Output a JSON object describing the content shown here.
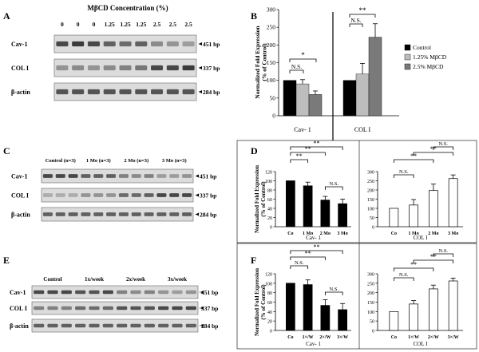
{
  "panels": {
    "A": {
      "letter": "A",
      "header": "MβCD Concentration (%)",
      "lanes": [
        "0",
        "0",
        "0",
        "1.25",
        "1.25",
        "1.25",
        "2.5",
        "2.5",
        "2.5"
      ],
      "rows": [
        {
          "name": "Cav-1",
          "size": "451 bp",
          "levels": [
            0.85,
            0.9,
            0.85,
            0.75,
            0.7,
            0.75,
            0.55,
            0.5,
            0.45
          ]
        },
        {
          "name": "COL I",
          "size": "337 bp",
          "levels": [
            0.5,
            0.55,
            0.5,
            0.55,
            0.6,
            0.65,
            0.85,
            0.85,
            0.9
          ]
        },
        {
          "name": "β-actin",
          "size": "284 bp",
          "levels": [
            0.8,
            0.8,
            0.8,
            0.8,
            0.8,
            0.8,
            0.8,
            0.8,
            0.8
          ]
        }
      ]
    },
    "C": {
      "letter": "C",
      "groups": [
        "Control (n=3)",
        "1 Mo (n=3)",
        "2 Mo (n=3)",
        "3 Mo (n=3)"
      ],
      "rows": [
        {
          "name": "Cav-1",
          "size": "451 bp",
          "levels": [
            0.85,
            0.85,
            0.85,
            0.75,
            0.75,
            0.75,
            0.6,
            0.55,
            0.6,
            0.45,
            0.45,
            0.5
          ]
        },
        {
          "name": "COL I",
          "size": "337 bp",
          "levels": [
            0.35,
            0.35,
            0.35,
            0.5,
            0.5,
            0.5,
            0.7,
            0.7,
            0.75,
            0.85,
            0.85,
            0.85
          ]
        },
        {
          "name": "β-actin",
          "size": "284 bp",
          "levels": [
            0.75,
            0.75,
            0.75,
            0.75,
            0.75,
            0.75,
            0.75,
            0.75,
            0.75,
            0.75,
            0.75,
            0.75
          ]
        }
      ]
    },
    "E": {
      "letter": "E",
      "groups": [
        "Control",
        "1x/week",
        "2x/week",
        "3x/week"
      ],
      "rows": [
        {
          "name": "Cav-1",
          "size": "451 bp",
          "levels": [
            0.85,
            0.85,
            0.85,
            0.8,
            0.8,
            0.85,
            0.6,
            0.55,
            0.6,
            0.5,
            0.45,
            0.5
          ]
        },
        {
          "name": "COL I",
          "size": "337 bp",
          "levels": [
            0.6,
            0.6,
            0.6,
            0.7,
            0.7,
            0.7,
            0.8,
            0.8,
            0.8,
            0.85,
            0.85,
            0.85
          ]
        },
        {
          "name": "β-actin",
          "size": "284 bp",
          "levels": [
            0.75,
            0.75,
            0.75,
            0.75,
            0.75,
            0.75,
            0.75,
            0.75,
            0.75,
            0.75,
            0.75,
            0.75
          ]
        }
      ]
    }
  },
  "chart_data": [
    {
      "id": "B",
      "type": "bar",
      "letter": "B",
      "ylabel": "Normalized Fold Expression\n(% of Control)",
      "ylim": [
        0,
        300
      ],
      "yticks": [
        0,
        50,
        100,
        150,
        200,
        250,
        300
      ],
      "groups": [
        "Cav- 1",
        "COL I"
      ],
      "series": [
        {
          "name": "Control",
          "color": "#000000",
          "values": [
            100,
            100
          ],
          "errors": [
            0,
            0
          ]
        },
        {
          "name": "1.25% MβCD",
          "color": "#bdbdbd",
          "values": [
            90,
            118
          ],
          "errors": [
            12,
            30
          ]
        },
        {
          "name": "2.5% MβCD",
          "color": "#7a7a7a",
          "values": [
            60,
            222
          ],
          "errors": [
            10,
            38
          ]
        }
      ],
      "legend": "top-right",
      "annotations": [
        "N.S.",
        "*",
        "N.S.",
        "**"
      ]
    },
    {
      "id": "D",
      "type": "bar",
      "letter": "D",
      "ylabel": "Normalized Fold Expression\n(% of Control)",
      "subplots": [
        {
          "xlabel": "Cav- 1",
          "ylim": [
            0,
            120
          ],
          "yticks": [
            0,
            20,
            40,
            60,
            80,
            100,
            120
          ],
          "categories": [
            "Co",
            "1 Mo",
            "2 Mo",
            "3 Mo"
          ],
          "values": [
            100,
            89,
            58,
            50
          ],
          "errors": [
            0,
            8,
            8,
            10
          ],
          "fill": "#000000",
          "annotations": [
            "**",
            "**",
            "**",
            "N.S."
          ]
        },
        {
          "xlabel": "COL I",
          "ylim": [
            0,
            300
          ],
          "yticks": [
            0,
            50,
            100,
            150,
            200,
            250,
            300
          ],
          "categories": [
            "Co",
            "1 Mo",
            "2 Mo",
            "3 Mo"
          ],
          "values": [
            100,
            118,
            197,
            262
          ],
          "errors": [
            0,
            30,
            35,
            20
          ],
          "fill": "#ffffff",
          "annotations": [
            "N.S.",
            "**",
            "**",
            "N.S."
          ]
        }
      ]
    },
    {
      "id": "F",
      "type": "bar",
      "letter": "F",
      "ylabel": "Normalized Fold Expression\n(% of Control)",
      "subplots": [
        {
          "xlabel": "Cav- 1",
          "ylim": [
            0,
            120
          ],
          "yticks": [
            0,
            20,
            40,
            60,
            80,
            100,
            120
          ],
          "categories": [
            "Co",
            "1×/W",
            "2×/W",
            "3×/W"
          ],
          "values": [
            100,
            97,
            53,
            44
          ],
          "errors": [
            0,
            10,
            12,
            13
          ],
          "fill": "#000000",
          "annotations": [
            "N.S.",
            "**",
            "**",
            "N.S."
          ]
        },
        {
          "xlabel": "COL I",
          "ylim": [
            0,
            300
          ],
          "yticks": [
            0,
            50,
            100,
            150,
            200,
            250,
            300
          ],
          "categories": [
            "Co",
            "1×/W",
            "2×/W",
            "3×/W"
          ],
          "values": [
            100,
            140,
            220,
            262
          ],
          "errors": [
            0,
            18,
            20,
            15
          ],
          "fill": "#ffffff",
          "annotations": [
            "N.S.",
            "**",
            "**",
            "N.S."
          ]
        }
      ]
    }
  ]
}
